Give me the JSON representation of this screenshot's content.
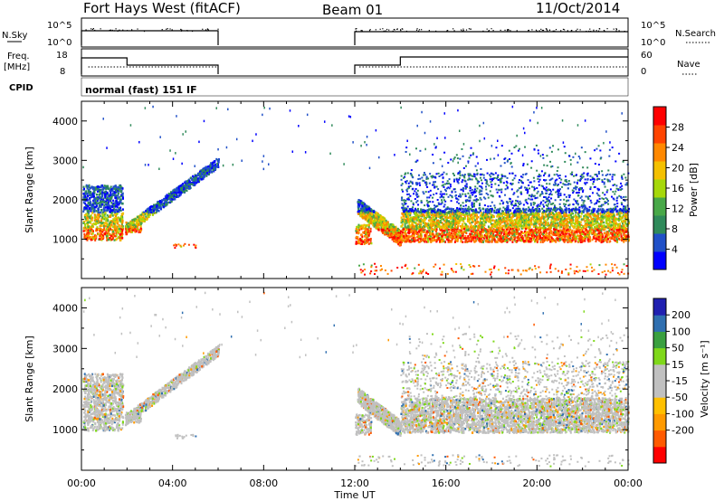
{
  "header": {
    "title": "Fort Hays West (fitACF)",
    "beam": "Beam 01",
    "date": "11/Oct/2014"
  },
  "aux_panels": {
    "nsky_label": "N.Sky",
    "nsky_ticks": [
      "10^5",
      "10^0"
    ],
    "nsearch_label": "N.Search",
    "nsearch_ticks": [
      "10^5",
      "10^0"
    ],
    "freq_label_1": "Freq.",
    "freq_label_2": "[MHz]",
    "freq_ticks": [
      "18",
      "8"
    ],
    "nave_label": "Nave",
    "nave_ticks": [
      "60",
      "0"
    ],
    "cpid_label": "CPID",
    "cpid_text": "normal (fast) 151 IF"
  },
  "colors": {
    "power_scale": [
      "#0000ff",
      "#2050c8",
      "#2f8a5a",
      "#48a848",
      "#a6d80a",
      "#f4c000",
      "#ff8800",
      "#ff4400",
      "#ff0000"
    ],
    "velocity_scale": [
      "#ff0000",
      "#ff5a00",
      "#ff9a00",
      "#ffc000",
      "#c0c0c0",
      "#c0c0c0",
      "#7fd81a",
      "#3aa040",
      "#2f6fb0",
      "#2020b0"
    ]
  },
  "chart_data": [
    {
      "type": "heatmap",
      "panel": "power",
      "xlabel": "",
      "ylabel": "Slant Range [km]",
      "yticks": [
        "1000",
        "2000",
        "3000",
        "4000"
      ],
      "ylim": [
        0,
        4500
      ],
      "xlim": [
        "00:00",
        "24:00"
      ],
      "colorbar_label": "Power [dB]",
      "colorbar_ticks": [
        "4",
        "8",
        "12",
        "16",
        "20",
        "24",
        "28"
      ],
      "colorbar_range": [
        0,
        32
      ]
    },
    {
      "type": "heatmap",
      "panel": "velocity",
      "xlabel": "Time UT",
      "ylabel": "Slant Range [km]",
      "yticks": [
        "1000",
        "2000",
        "3000",
        "4000"
      ],
      "ylim": [
        0,
        4500
      ],
      "xticks": [
        "00:00",
        "04:00",
        "08:00",
        "12:00",
        "16:00",
        "20:00",
        "00:00"
      ],
      "colorbar_label": "Velocity [m s⁻¹]",
      "colorbar_ticks": [
        "200",
        "100",
        "50",
        "15",
        "-15",
        "-50",
        "-100",
        "-200"
      ],
      "colorbar_range": [
        -250,
        250
      ]
    }
  ]
}
